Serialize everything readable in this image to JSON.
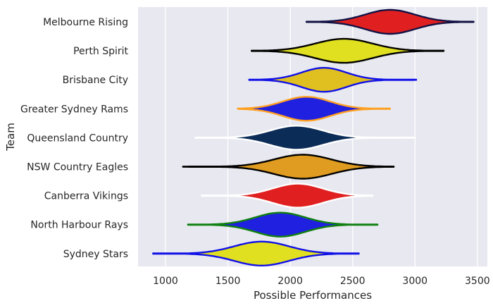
{
  "chart_data": {
    "type": "violin",
    "title": "",
    "xlabel": "Possible Performances",
    "ylabel": "Team",
    "xlim": [
      780,
      3580
    ],
    "xticks": [
      1000,
      1500,
      2000,
      2500,
      3000,
      3500
    ],
    "xtick_labels": [
      "1000",
      "1500",
      "2000",
      "2500",
      "3000",
      "3500"
    ],
    "grid": true,
    "background": "#e8e8f0",
    "teams": [
      {
        "name": "Melbourne Rising",
        "min": 2130,
        "max": 3470,
        "peak": 2800,
        "spread": 200,
        "fill": "#e02020",
        "stroke": "#121245"
      },
      {
        "name": "Perth Spirit",
        "min": 1690,
        "max": 3230,
        "peak": 2430,
        "spread": 230,
        "fill": "#e0e020",
        "stroke": "#000000"
      },
      {
        "name": "Brisbane City",
        "min": 1670,
        "max": 3010,
        "peak": 2270,
        "spread": 180,
        "fill": "#e0c020",
        "stroke": "#1010e8"
      },
      {
        "name": "Greater Sydney Rams",
        "min": 1580,
        "max": 2800,
        "peak": 2130,
        "spread": 190,
        "fill": "#2020e0",
        "stroke": "#ffa020"
      },
      {
        "name": "Queensland Country",
        "min": 1240,
        "max": 3000,
        "peak": 2050,
        "spread": 210,
        "fill": "#0c2c58",
        "stroke": "#ffffff"
      },
      {
        "name": "NSW Country Eagles",
        "min": 1140,
        "max": 2830,
        "peak": 2100,
        "spread": 230,
        "fill": "#e09c20",
        "stroke": "#000000"
      },
      {
        "name": "Canberra Vikings",
        "min": 1290,
        "max": 2660,
        "peak": 2060,
        "spread": 200,
        "fill": "#e02020",
        "stroke": "#ffffff"
      },
      {
        "name": "North Harbour Rays",
        "min": 1180,
        "max": 2700,
        "peak": 1920,
        "spread": 200,
        "fill": "#2020e0",
        "stroke": "#108010"
      },
      {
        "name": "Sydney Stars",
        "min": 900,
        "max": 2550,
        "peak": 1770,
        "spread": 220,
        "fill": "#e0e020",
        "stroke": "#1010e8"
      }
    ]
  }
}
